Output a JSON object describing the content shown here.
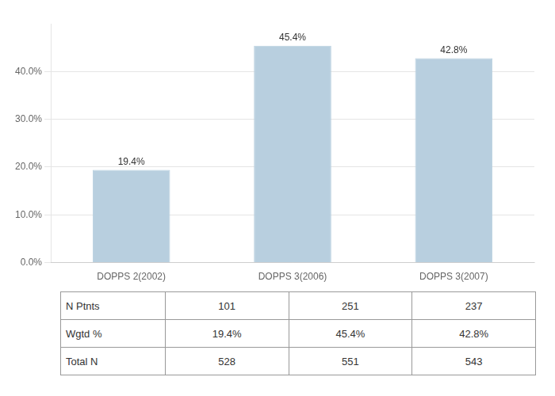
{
  "chart_data": {
    "type": "bar",
    "categories": [
      "DOPPS 2(2002)",
      "DOPPS 3(2006)",
      "DOPPS 3(2007)"
    ],
    "values": [
      19.4,
      45.4,
      42.8
    ],
    "value_labels": [
      "19.4%",
      "45.4%",
      "42.8%"
    ],
    "data_labels": true,
    "color": "#b8cfdf",
    "ylim": [
      0,
      50
    ],
    "yticks": [
      {
        "value": 0,
        "label": "0.0%"
      },
      {
        "value": 10,
        "label": "10.0%"
      },
      {
        "value": 20,
        "label": "20.0%"
      },
      {
        "value": 30,
        "label": "30.0%"
      },
      {
        "value": 40,
        "label": "40.0%"
      }
    ],
    "grid": true,
    "table_rows": [
      "N Ptnts",
      "Wgtd %",
      "Total N"
    ],
    "table_data": [
      [
        "101",
        "251",
        "237"
      ],
      [
        "19.4%",
        "45.4%",
        "42.8%"
      ],
      [
        "528",
        "551",
        "543"
      ]
    ]
  }
}
